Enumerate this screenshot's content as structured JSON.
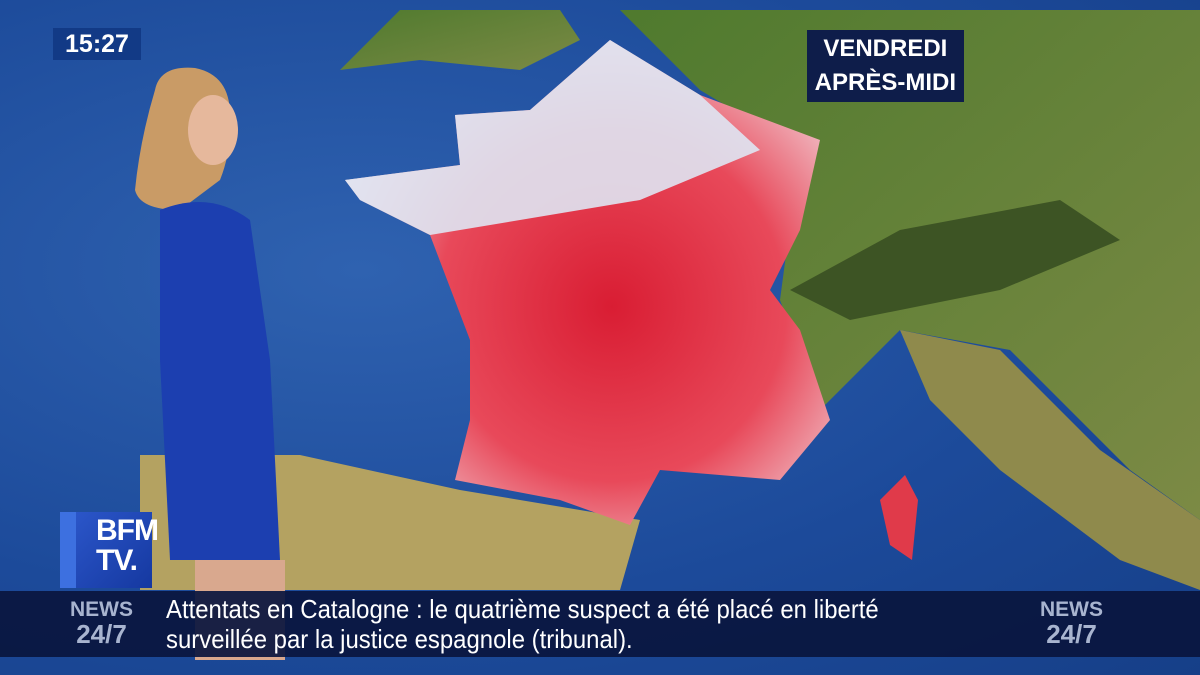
{
  "clock": "15:27",
  "forecast": {
    "day": "VENDREDI",
    "period": "APRÈS-MIDI"
  },
  "logo": {
    "line1": "BFM",
    "line2": "TV."
  },
  "ticker": {
    "left_badge": {
      "line1": "NEWS",
      "line2": "24/7"
    },
    "right_badge": {
      "line1": "NEWS",
      "line2": "24/7"
    },
    "headline_line1": "Attentats en Catalogne : le quatrième suspect a été placé en liberté",
    "headline_line2": "surveillée par la justice espagnole (tribunal)."
  },
  "colors": {
    "sea": "#1f4f9f",
    "land": "#5e7d3a",
    "heat": "#e0303c",
    "ticker_bg": "#0a163e"
  }
}
